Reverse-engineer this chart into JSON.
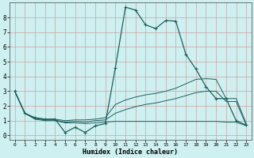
{
  "background_color": "#cff0f0",
  "grid_color_major": "#d0a0a0",
  "grid_color_minor": "#e0c8c8",
  "line_color": "#1a6060",
  "xlabel": "Humidex (Indice chaleur)",
  "xlim": [
    -0.5,
    23.5
  ],
  "ylim": [
    -0.3,
    9.0
  ],
  "xticks": [
    0,
    1,
    2,
    3,
    4,
    5,
    6,
    7,
    8,
    9,
    10,
    11,
    12,
    13,
    14,
    15,
    16,
    17,
    18,
    19,
    20,
    21,
    22,
    23
  ],
  "yticks": [
    0,
    1,
    2,
    3,
    4,
    5,
    6,
    7,
    8
  ],
  "line1_x": [
    0,
    1,
    2,
    3,
    4,
    5,
    6,
    7,
    8,
    9,
    10,
    11,
    12,
    13,
    14,
    15,
    16,
    17,
    18,
    19,
    20,
    21,
    22,
    23
  ],
  "line1_y": [
    3.0,
    1.5,
    1.2,
    1.1,
    1.1,
    0.2,
    0.55,
    0.2,
    0.65,
    0.8,
    4.6,
    8.7,
    8.5,
    7.5,
    7.25,
    7.8,
    7.75,
    5.5,
    4.5,
    3.3,
    2.5,
    2.5,
    1.0,
    0.7
  ],
  "line2_x": [
    0,
    1,
    2,
    3,
    4,
    5,
    6,
    7,
    8,
    9,
    10,
    11,
    12,
    13,
    14,
    15,
    16,
    17,
    18,
    19,
    20,
    21,
    22,
    23
  ],
  "line2_y": [
    3.0,
    1.5,
    1.2,
    1.1,
    1.1,
    1.0,
    1.05,
    1.05,
    1.1,
    1.2,
    2.1,
    2.4,
    2.6,
    2.75,
    2.85,
    3.0,
    3.2,
    3.5,
    3.8,
    3.85,
    3.8,
    2.5,
    2.5,
    0.8
  ],
  "line3_x": [
    0,
    1,
    2,
    3,
    4,
    5,
    6,
    7,
    8,
    9,
    10,
    11,
    12,
    13,
    14,
    15,
    16,
    17,
    18,
    19,
    20,
    21,
    22,
    23
  ],
  "line3_y": [
    3.0,
    1.5,
    1.15,
    1.05,
    1.05,
    0.9,
    0.95,
    0.9,
    1.0,
    1.05,
    1.5,
    1.75,
    1.95,
    2.1,
    2.2,
    2.35,
    2.5,
    2.7,
    2.9,
    3.0,
    3.0,
    2.3,
    2.3,
    0.7
  ],
  "line4_x": [
    0,
    1,
    2,
    3,
    4,
    5,
    6,
    7,
    8,
    9,
    10,
    11,
    12,
    13,
    14,
    15,
    16,
    17,
    18,
    19,
    20,
    21,
    22,
    23
  ],
  "line4_y": [
    3.0,
    1.5,
    1.1,
    1.0,
    1.0,
    0.85,
    0.85,
    0.8,
    0.85,
    0.9,
    0.95,
    0.95,
    0.95,
    0.95,
    0.95,
    0.95,
    0.95,
    0.95,
    0.95,
    0.95,
    0.95,
    0.9,
    0.9,
    0.65
  ]
}
